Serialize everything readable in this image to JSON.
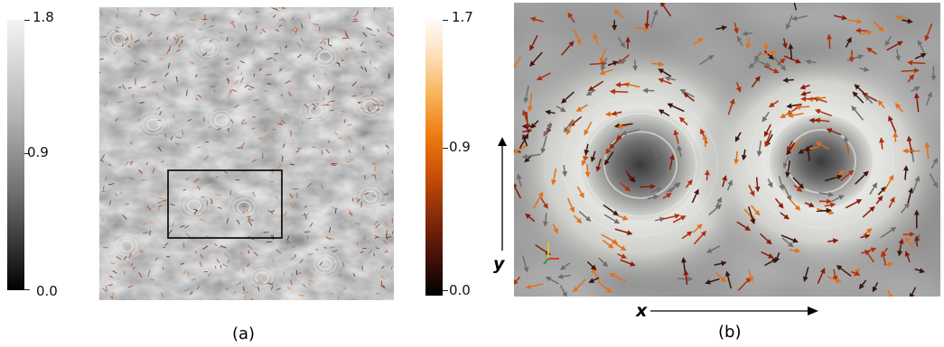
{
  "panel_a": {
    "caption": "(a)",
    "colorbar_left": {
      "max_label": "1.8",
      "mid_label": "0.9",
      "min_label": "0.0",
      "gradient": "gray"
    },
    "colorbar_right": {
      "max_label": "1.7",
      "mid_label": "0.9",
      "min_label": "0.0",
      "gradient": "black-red-orange-white"
    }
  },
  "panel_b": {
    "caption": "(b)",
    "x_axis_label": "x",
    "y_axis_label": "y"
  },
  "colors": {
    "field_light": "#e8e8e6",
    "field_dark": "#3c3c3c",
    "arrow_dark_red": "#8a1a0a",
    "arrow_orange": "#e2701a",
    "arrow_gray": "#6e6e6e",
    "zoom_box": "#000000"
  }
}
